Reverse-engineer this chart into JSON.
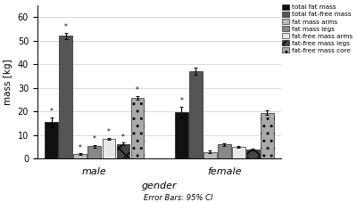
{
  "xlabel": "gender",
  "ylabel": "mass [kg]",
  "footnote": "Error Bars: 95% CI",
  "categories": [
    "male",
    "female"
  ],
  "series": [
    {
      "label": "total fat mass",
      "values": [
        15.5,
        19.8
      ],
      "errors": [
        2.0,
        2.2
      ],
      "color": "#111111",
      "hatch": "",
      "starred": [
        true,
        true
      ]
    },
    {
      "label": "total fat-free mass",
      "values": [
        52.0,
        37.0
      ],
      "errors": [
        1.2,
        1.5
      ],
      "color": "#555555",
      "hatch": "",
      "starred": [
        true,
        false
      ]
    },
    {
      "label": "fat mass arms",
      "values": [
        2.0,
        3.0
      ],
      "errors": [
        0.3,
        0.4
      ],
      "color": "#bbbbbb",
      "hatch": "",
      "starred": [
        true,
        false
      ]
    },
    {
      "label": "fat mass legs",
      "values": [
        5.3,
        6.1
      ],
      "errors": [
        0.5,
        0.6
      ],
      "color": "#888888",
      "hatch": "",
      "starred": [
        true,
        false
      ]
    },
    {
      "label": "fat-free mass arms",
      "values": [
        8.5,
        5.1
      ],
      "errors": [
        0.4,
        0.5
      ],
      "color": "#e8e8e8",
      "hatch": "",
      "starred": [
        true,
        false
      ]
    },
    {
      "label": "fat-free mass legs",
      "values": [
        6.3,
        4.0
      ],
      "errors": [
        0.5,
        0.4
      ],
      "color": "#444444",
      "hatch": "xx",
      "starred": [
        true,
        false
      ]
    },
    {
      "label": "fat-free mass core",
      "values": [
        25.8,
        19.5
      ],
      "errors": [
        0.8,
        1.0
      ],
      "color": "#aaaaaa",
      "hatch": "..",
      "starred": [
        true,
        false
      ]
    }
  ],
  "ylim": [
    0,
    65
  ],
  "yticks": [
    0,
    10,
    20,
    30,
    40,
    50,
    60
  ],
  "bar_width": 0.055,
  "group_centers": [
    0.22,
    0.72
  ]
}
